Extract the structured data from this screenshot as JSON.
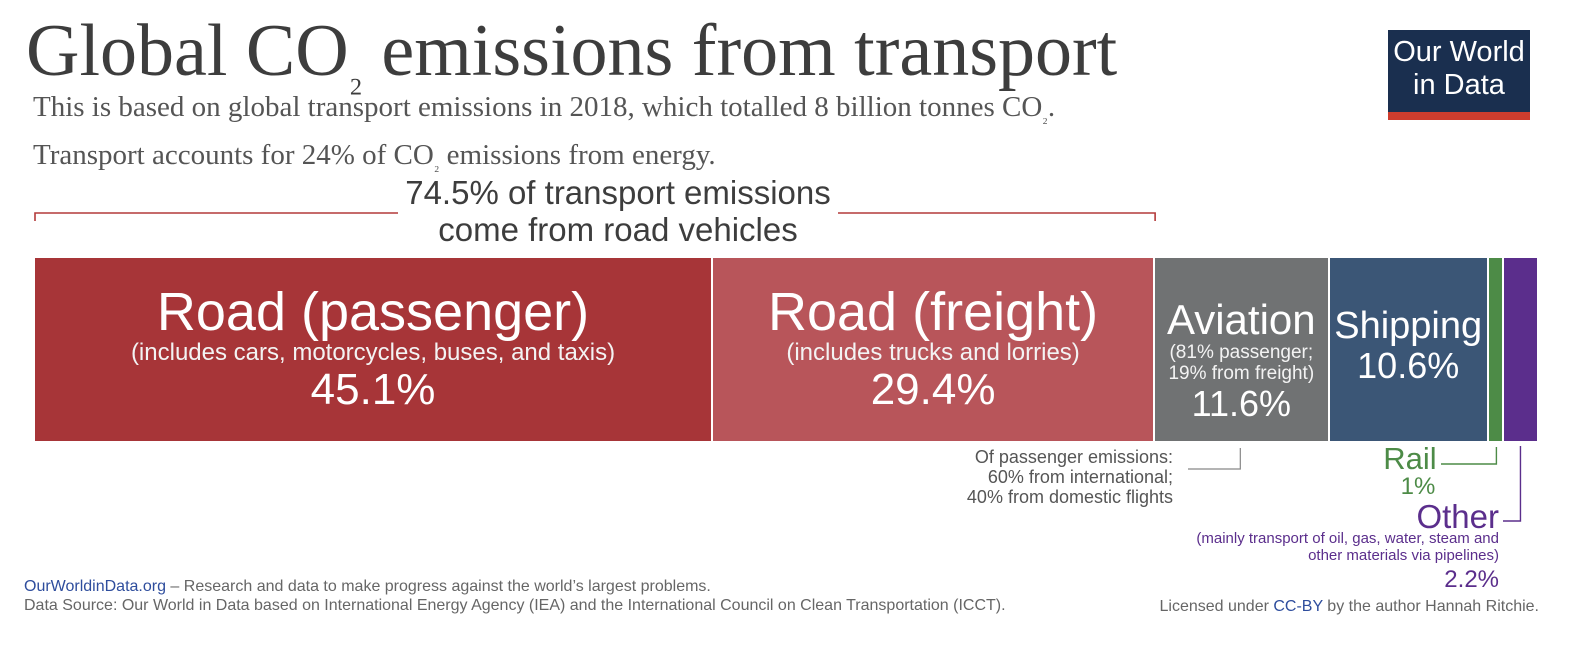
{
  "header": {
    "title_pre": "Global CO",
    "title_sub": "₂",
    "title_post": " emissions from transport",
    "subtitle_l1_pre": "This is based on global transport emissions in 2018, which totalled 8 billion tonnes CO",
    "subtitle_l1_sub": "₂",
    "subtitle_l1_post": ".",
    "subtitle_l2_pre": "Transport accounts for 24% of CO",
    "subtitle_l2_sub": "₂",
    "subtitle_l2_post": " emissions from energy."
  },
  "logo": {
    "text": "Our World\nin Data",
    "colors": {
      "bg": "#1a2f4f",
      "accent": "#ce3d2e"
    }
  },
  "chart_data": {
    "type": "bar",
    "orientation": "horizontal-stacked",
    "total_label": "",
    "categories": [
      "Road (passenger)",
      "Road (freight)",
      "Aviation",
      "Shipping",
      "Rail",
      "Other"
    ],
    "segments": [
      {
        "name": "Road (passenger)",
        "desc": "(includes cars, motorcycles, buses, and taxis)",
        "value": 45.1,
        "label": "45.1%",
        "color": "#a73538"
      },
      {
        "name": "Road (freight)",
        "desc": "(includes trucks and lorries)",
        "value": 29.4,
        "label": "29.4%",
        "color": "#b8555a"
      },
      {
        "name": "Aviation",
        "desc": "(81% passenger;\n19% from freight)",
        "value": 11.6,
        "label": "11.6%",
        "color": "#707273"
      },
      {
        "name": "Shipping",
        "desc": "",
        "value": 10.6,
        "label": "10.6%",
        "color": "#3b5676"
      },
      {
        "name": "Rail",
        "desc": "",
        "value": 1,
        "label": "1%",
        "color": "#4d8b47"
      },
      {
        "name": "Other",
        "desc": "(mainly transport of oil, gas, water, steam and\nother materials via pipelines)",
        "value": 2.2,
        "label": "2.2%",
        "color": "#5b2e8c"
      }
    ],
    "annotations": {
      "road_group": "74.5% of transport emissions\ncome from road vehicles",
      "aviation_note": [
        "Of passenger emissions:",
        "60% from international;",
        "40% from domestic flights"
      ],
      "rail_name": "Rail",
      "rail_value": "1%",
      "other_name": "Other",
      "other_desc": [
        "(mainly transport of oil, gas, water, steam and",
        "other materials via pipelines)"
      ],
      "other_value": "2.2%"
    },
    "colors": {
      "annotation_line": "#b43a3a",
      "note_line": "#888888",
      "rail": "#4d8b47",
      "other": "#5b2e8c"
    }
  },
  "footer": {
    "site": "OurWorldinData.org",
    "tagline": " – Research and data to make progress against the world’s largest problems.",
    "source": "Data Source: Our World in Data based on International Energy Agency (IEA) and the International Council on Clean Transportation (ICCT).",
    "license_pre": "Licensed under ",
    "license_link": "CC-BY",
    "license_post": " by the author Hannah Ritchie."
  }
}
